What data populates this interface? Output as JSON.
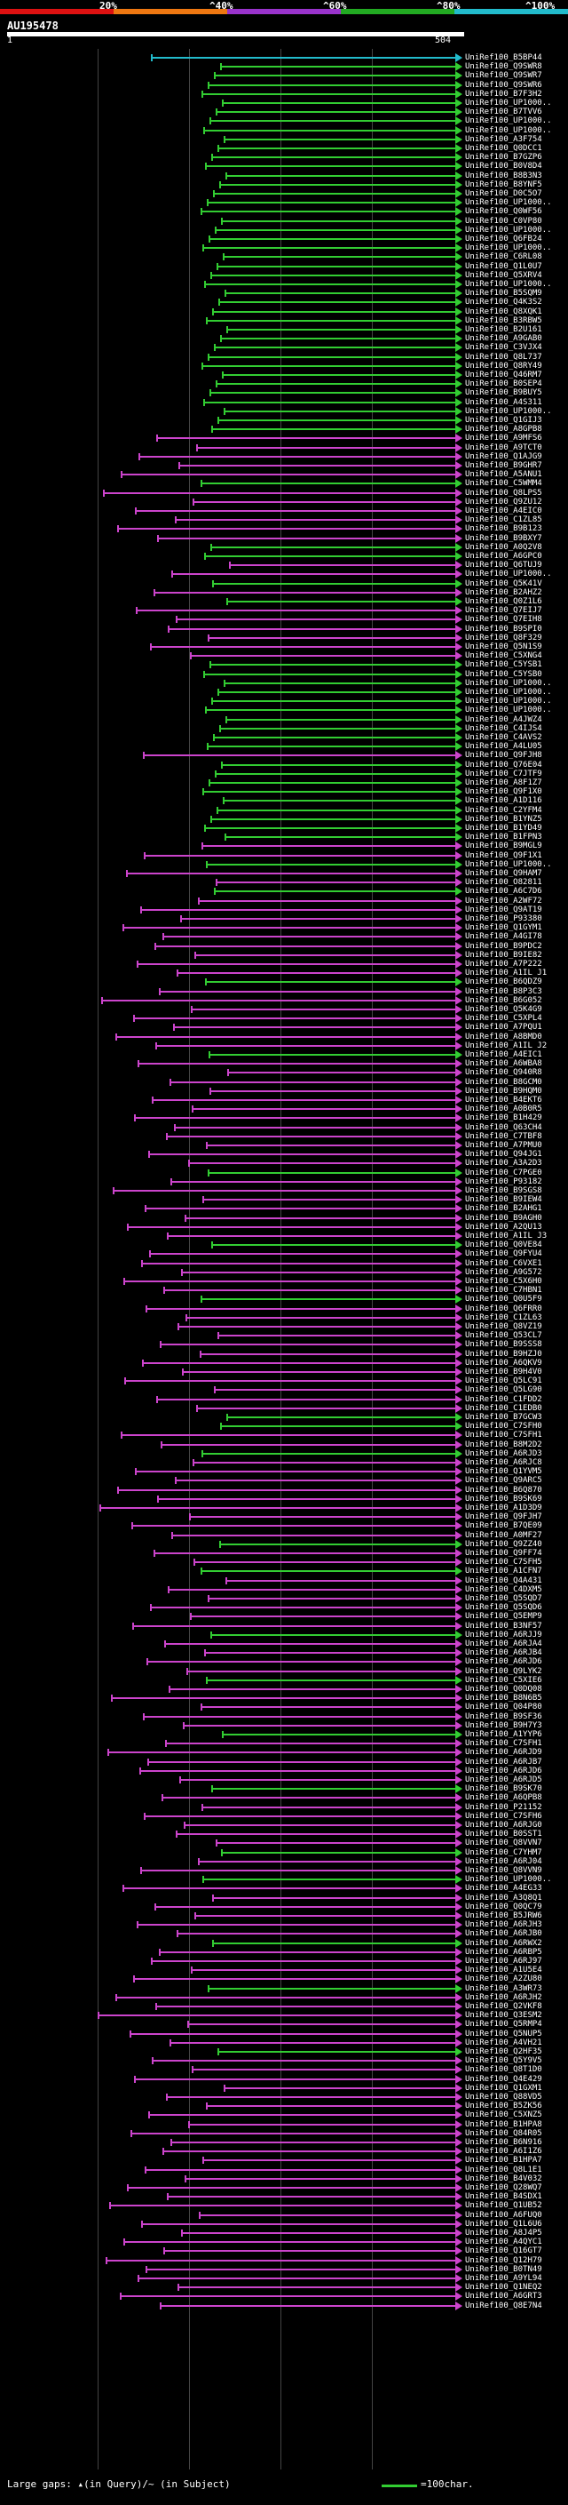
{
  "scale": {
    "labels": [
      "20%",
      "^40%",
      "^60%",
      "^80%",
      "^100%"
    ],
    "colors": [
      "#dd1111",
      "#ee7711",
      "#9933cc",
      "#22aa22",
      "#22bbcc"
    ]
  },
  "query": {
    "name": "AU195478",
    "start": "1",
    "end": "504"
  },
  "colors": {
    "green": "#32cd32",
    "magenta": "#cc44cc",
    "cyan": "#22bbcc",
    "grid": "#444444"
  },
  "hits": [
    {
      "label": "UniRef100_B5BP44",
      "color": "cyan"
    },
    {
      "label": "UniRef100_Q9SWR8",
      "color": "green"
    },
    {
      "label": "UniRef100_Q9SWR7",
      "color": "green"
    },
    {
      "label": "UniRef100_Q9SWR6",
      "color": "green"
    },
    {
      "label": "UniRef100_B7F3H2",
      "color": "green"
    },
    {
      "label": "UniRef100_UP1000..",
      "color": "green"
    },
    {
      "label": "UniRef100_B7TVV6",
      "color": "green"
    },
    {
      "label": "UniRef100_UP1000..",
      "color": "green"
    },
    {
      "label": "UniRef100_UP1000..",
      "color": "green"
    },
    {
      "label": "UniRef100_A3F754",
      "color": "green"
    },
    {
      "label": "UniRef100_Q0DCC1",
      "color": "green"
    },
    {
      "label": "UniRef100_B7GZP6",
      "color": "green"
    },
    {
      "label": "UniRef100_B0V8D4",
      "color": "green"
    },
    {
      "label": "UniRef100_B8B3N3",
      "color": "green"
    },
    {
      "label": "UniRef100_B8YNF5",
      "color": "green"
    },
    {
      "label": "UniRef100_D0C5O7",
      "color": "green"
    },
    {
      "label": "UniRef100_UP1000..",
      "color": "green"
    },
    {
      "label": "UniRef100_Q0WF56",
      "color": "green"
    },
    {
      "label": "UniRef100_C0VP80",
      "color": "green"
    },
    {
      "label": "UniRef100_UP1000..",
      "color": "green"
    },
    {
      "label": "UniRef100_Q6FB24",
      "color": "green"
    },
    {
      "label": "UniRef100_UP1000..",
      "color": "green"
    },
    {
      "label": "UniRef100_C6RL08",
      "color": "green"
    },
    {
      "label": "UniRef100_Q1L0U7",
      "color": "green"
    },
    {
      "label": "UniRef100_Q5XRV4",
      "color": "green"
    },
    {
      "label": "UniRef100_UP1000..",
      "color": "green"
    },
    {
      "label": "UniRef100_B5SQM9",
      "color": "green"
    },
    {
      "label": "UniRef100_Q4K3S2",
      "color": "green"
    },
    {
      "label": "UniRef100_Q8XQK1",
      "color": "green"
    },
    {
      "label": "UniRef100_B3RBW5",
      "color": "green"
    },
    {
      "label": "UniRef100_B2U161",
      "color": "green"
    },
    {
      "label": "UniRef100_A9GAB0",
      "color": "green"
    },
    {
      "label": "UniRef100_C3VJX4",
      "color": "green"
    },
    {
      "label": "UniRef100_Q8L737",
      "color": "green"
    },
    {
      "label": "UniRef100_Q8RY49",
      "color": "green"
    },
    {
      "label": "UniRef100_Q46RM7",
      "color": "green"
    },
    {
      "label": "UniRef100_B0SEP4",
      "color": "green"
    },
    {
      "label": "UniRef100_B9BUY5",
      "color": "green"
    },
    {
      "label": "UniRef100_A4S311",
      "color": "green"
    },
    {
      "label": "UniRef100_UP1000..",
      "color": "green"
    },
    {
      "label": "UniRef100_Q1GIJ3",
      "color": "green"
    },
    {
      "label": "UniRef100_A8GPB8",
      "color": "green"
    },
    {
      "label": "UniRef100_A9MFS6",
      "color": "magenta"
    },
    {
      "label": "UniRef100_A9TCT0",
      "color": "magenta"
    },
    {
      "label": "UniRef100_Q1AJG9",
      "color": "magenta"
    },
    {
      "label": "UniRef100_B9GHR7",
      "color": "magenta"
    },
    {
      "label": "UniRef100_A5ANU1",
      "color": "magenta"
    },
    {
      "label": "UniRef100_C5WMM4",
      "color": "green"
    },
    {
      "label": "UniRef100_Q8LPS5",
      "color": "magenta"
    },
    {
      "label": "UniRef100_Q9ZU12",
      "color": "magenta"
    },
    {
      "label": "UniRef100_A4EIC0",
      "color": "magenta"
    },
    {
      "label": "UniRef100_C1ZL85",
      "color": "magenta"
    },
    {
      "label": "UniRef100_B9B123",
      "color": "magenta"
    },
    {
      "label": "UniRef100_B9BXY7",
      "color": "magenta"
    },
    {
      "label": "UniRef100_A0Q2V8",
      "color": "green"
    },
    {
      "label": "UniRef100_A6GPC0",
      "color": "green"
    },
    {
      "label": "UniRef100_Q6TUJ9",
      "color": "magenta"
    },
    {
      "label": "UniRef100_UP1000..",
      "color": "magenta"
    },
    {
      "label": "UniRef100_Q5K41V",
      "color": "green"
    },
    {
      "label": "UniRef100_B2AHZ2",
      "color": "magenta"
    },
    {
      "label": "UniRef100_Q0Z1L6",
      "color": "green"
    },
    {
      "label": "UniRef100_Q7EIJ7",
      "color": "magenta"
    },
    {
      "label": "UniRef100_Q7EIH8",
      "color": "magenta"
    },
    {
      "label": "UniRef100_B9SPI0",
      "color": "magenta"
    },
    {
      "label": "UniRef100_Q8F329",
      "color": "magenta"
    },
    {
      "label": "UniRef100_Q5N1S9",
      "color": "magenta"
    },
    {
      "label": "UniRef100_C5XNG4",
      "color": "magenta"
    },
    {
      "label": "UniRef100_C5YSB1",
      "color": "green"
    },
    {
      "label": "UniRef100_C5YSB0",
      "color": "green"
    },
    {
      "label": "UniRef100_UP1000..",
      "color": "green"
    },
    {
      "label": "UniRef100_UP1000..",
      "color": "green"
    },
    {
      "label": "UniRef100_UP1000..",
      "color": "green"
    },
    {
      "label": "UniRef100_UP1000..",
      "color": "green"
    },
    {
      "label": "UniRef100_A4JWZ4",
      "color": "green"
    },
    {
      "label": "UniRef100_C4IJS4",
      "color": "green"
    },
    {
      "label": "UniRef100_C4AVS2",
      "color": "green"
    },
    {
      "label": "UniRef100_A4LU05",
      "color": "green"
    },
    {
      "label": "UniRef100_Q9FJH8",
      "color": "magenta"
    },
    {
      "label": "UniRef100_Q76E04",
      "color": "green"
    },
    {
      "label": "UniRef100_C7JTF9",
      "color": "green"
    },
    {
      "label": "UniRef100_A8F1Z7",
      "color": "green"
    },
    {
      "label": "UniRef100_Q9F1X0",
      "color": "green"
    },
    {
      "label": "UniRef100_A1D116",
      "color": "green"
    },
    {
      "label": "UniRef100_C2YFM4",
      "color": "green"
    },
    {
      "label": "UniRef100_B1YNZ5",
      "color": "green"
    },
    {
      "label": "UniRef100_B1YD49",
      "color": "green"
    },
    {
      "label": "UniRef100_B1FPN3",
      "color": "green"
    },
    {
      "label": "UniRef100_B9MGL9",
      "color": "magenta"
    },
    {
      "label": "UniRef100_Q9F1X1",
      "color": "magenta"
    },
    {
      "label": "UniRef100_UP1000..",
      "color": "green"
    },
    {
      "label": "UniRef100_Q9HAM7",
      "color": "magenta"
    },
    {
      "label": "UniRef100_O82811",
      "color": "magenta"
    },
    {
      "label": "UniRef100_A6C7D6",
      "color": "green"
    },
    {
      "label": "UniRef100_A2WF72",
      "color": "magenta"
    },
    {
      "label": "UniRef100_Q9AT19",
      "color": "magenta"
    },
    {
      "label": "UniRef100_P93380",
      "color": "magenta"
    },
    {
      "label": "UniRef100_Q1GYM1",
      "color": "magenta"
    },
    {
      "label": "UniRef100_A4GI78",
      "color": "magenta"
    },
    {
      "label": "UniRef100_B9PDC2",
      "color": "magenta"
    },
    {
      "label": "UniRef100_B9IE82",
      "color": "magenta"
    },
    {
      "label": "UniRef100_A7P222",
      "color": "magenta"
    },
    {
      "label": "UniRef100_A1IL J1",
      "color": "magenta"
    },
    {
      "label": "UniRef100_B6QDZ9",
      "color": "green"
    },
    {
      "label": "UniRef100_B8P3C3",
      "color": "magenta"
    },
    {
      "label": "UniRef100_B6G052",
      "color": "magenta"
    },
    {
      "label": "UniRef100_Q5K4G9",
      "color": "magenta"
    },
    {
      "label": "UniRef100_C5XPL4",
      "color": "magenta"
    },
    {
      "label": "UniRef100_A7PQU1",
      "color": "magenta"
    },
    {
      "label": "UniRef100_A8BMD0",
      "color": "magenta"
    },
    {
      "label": "UniRef100_A1IL J2",
      "color": "magenta"
    },
    {
      "label": "UniRef100_A4EIC1",
      "color": "green"
    },
    {
      "label": "UniRef100_A6WBA8",
      "color": "magenta"
    },
    {
      "label": "UniRef100_Q940R8",
      "color": "magenta"
    },
    {
      "label": "UniRef100_B8GCM0",
      "color": "magenta"
    },
    {
      "label": "UniRef100_B9HQM0",
      "color": "magenta"
    },
    {
      "label": "UniRef100_B4EKT6",
      "color": "magenta"
    },
    {
      "label": "UniRef100_A0B0R5",
      "color": "magenta"
    },
    {
      "label": "UniRef100_B1H429",
      "color": "magenta"
    },
    {
      "label": "UniRef100_Q63CH4",
      "color": "magenta"
    },
    {
      "label": "UniRef100_C7TBF8",
      "color": "magenta"
    },
    {
      "label": "UniRef100_A7PMU0",
      "color": "magenta"
    },
    {
      "label": "UniRef100_Q94JG1",
      "color": "magenta"
    },
    {
      "label": "UniRef100_A3A2D3",
      "color": "magenta"
    },
    {
      "label": "UniRef100_C7PGE0",
      "color": "green"
    },
    {
      "label": "UniRef100_P93182",
      "color": "magenta"
    },
    {
      "label": "UniRef100_B9SGS8",
      "color": "magenta"
    },
    {
      "label": "UniRef100_B9IEW4",
      "color": "magenta"
    },
    {
      "label": "UniRef100_B2AHG1",
      "color": "magenta"
    },
    {
      "label": "UniRef100_B9AGH0",
      "color": "magenta"
    },
    {
      "label": "UniRef100_A2QU13",
      "color": "magenta"
    },
    {
      "label": "UniRef100_A1IL J3",
      "color": "magenta"
    },
    {
      "label": "UniRef100_Q0VE84",
      "color": "green"
    },
    {
      "label": "UniRef100_Q9FYU4",
      "color": "magenta"
    },
    {
      "label": "UniRef100_C6VXE1",
      "color": "magenta"
    },
    {
      "label": "UniRef100_A9G572",
      "color": "magenta"
    },
    {
      "label": "UniRef100_C5X6H0",
      "color": "magenta"
    },
    {
      "label": "UniRef100_C7HBN1",
      "color": "magenta"
    },
    {
      "label": "UniRef100_Q0U5F9",
      "color": "green"
    },
    {
      "label": "UniRef100_Q6FRR0",
      "color": "magenta"
    },
    {
      "label": "UniRef100_C1ZL63",
      "color": "magenta"
    },
    {
      "label": "UniRef100_Q8VZ19",
      "color": "magenta"
    },
    {
      "label": "UniRef100_Q53CL7",
      "color": "magenta"
    },
    {
      "label": "UniRef100_B9SSS8",
      "color": "magenta"
    },
    {
      "label": "UniRef100_B9HZJ0",
      "color": "magenta"
    },
    {
      "label": "UniRef100_A6QKV9",
      "color": "magenta"
    },
    {
      "label": "UniRef100_B9H4V0",
      "color": "magenta"
    },
    {
      "label": "UniRef100_Q5LC91",
      "color": "magenta"
    },
    {
      "label": "UniRef100_Q5LG90",
      "color": "magenta"
    },
    {
      "label": "UniRef100_C1FDD2",
      "color": "magenta"
    },
    {
      "label": "UniRef100_C1EDB0",
      "color": "magenta"
    },
    {
      "label": "UniRef100_B7GCW3",
      "color": "green"
    },
    {
      "label": "UniRef100_C7SFH0",
      "color": "green"
    },
    {
      "label": "UniRef100_C7SFH1",
      "color": "magenta"
    },
    {
      "label": "UniRef100_B8M2D2",
      "color": "magenta"
    },
    {
      "label": "UniRef100_A6RJD3",
      "color": "green"
    },
    {
      "label": "UniRef100_A6RJC8",
      "color": "magenta"
    },
    {
      "label": "UniRef100_Q1YVM5",
      "color": "magenta"
    },
    {
      "label": "UniRef100_Q9ARC5",
      "color": "magenta"
    },
    {
      "label": "UniRef100_B6Q870",
      "color": "magenta"
    },
    {
      "label": "UniRef100_B9SK69",
      "color": "magenta"
    },
    {
      "label": "UniRef100_A1D3D9",
      "color": "magenta"
    },
    {
      "label": "UniRef100_Q9FJH7",
      "color": "magenta"
    },
    {
      "label": "UniRef100_B7QE09",
      "color": "magenta"
    },
    {
      "label": "UniRef100_A0MF27",
      "color": "magenta"
    },
    {
      "label": "UniRef100_Q9ZZ40",
      "color": "green"
    },
    {
      "label": "UniRef100_Q9FF74",
      "color": "magenta"
    },
    {
      "label": "UniRef100_C7SFH5",
      "color": "magenta"
    },
    {
      "label": "UniRef100_A1CFN7",
      "color": "green"
    },
    {
      "label": "UniRef100_Q4A431",
      "color": "magenta"
    },
    {
      "label": "UniRef100_C4DXM5",
      "color": "magenta"
    },
    {
      "label": "UniRef100_Q5SQD7",
      "color": "magenta"
    },
    {
      "label": "UniRef100_Q5SQD6",
      "color": "magenta"
    },
    {
      "label": "UniRef100_Q5EMP9",
      "color": "magenta"
    },
    {
      "label": "UniRef100_B3NF57",
      "color": "magenta"
    },
    {
      "label": "UniRef100_A6RJJ9",
      "color": "green"
    },
    {
      "label": "UniRef100_A6RJA4",
      "color": "magenta"
    },
    {
      "label": "UniRef100_A6RJB4",
      "color": "magenta"
    },
    {
      "label": "UniRef100_A6RJD6",
      "color": "magenta"
    },
    {
      "label": "UniRef100_Q9LYK2",
      "color": "magenta"
    },
    {
      "label": "UniRef100_C5XIE6",
      "color": "green"
    },
    {
      "label": "UniRef100_Q0DQ08",
      "color": "magenta"
    },
    {
      "label": "UniRef100_B8N6B5",
      "color": "magenta"
    },
    {
      "label": "UniRef100_Q04P80",
      "color": "magenta"
    },
    {
      "label": "UniRef100_B9SF36",
      "color": "magenta"
    },
    {
      "label": "UniRef100_B9H7Y3",
      "color": "magenta"
    },
    {
      "label": "UniRef100_A1YYP6",
      "color": "green"
    },
    {
      "label": "UniRef100_C7SFH1",
      "color": "magenta"
    },
    {
      "label": "UniRef100_A6RJD9",
      "color": "magenta"
    },
    {
      "label": "UniRef100_A6RJB7",
      "color": "magenta"
    },
    {
      "label": "UniRef100_A6RJD6",
      "color": "magenta"
    },
    {
      "label": "UniRef100_A6RJD5",
      "color": "magenta"
    },
    {
      "label": "UniRef100_B9SK70",
      "color": "green"
    },
    {
      "label": "UniRef100_A6QPB8",
      "color": "magenta"
    },
    {
      "label": "UniRef100_P21152",
      "color": "magenta"
    },
    {
      "label": "UniRef100_C7SFH6",
      "color": "magenta"
    },
    {
      "label": "UniRef100_A6RJG0",
      "color": "magenta"
    },
    {
      "label": "UniRef100_B0SST1",
      "color": "magenta"
    },
    {
      "label": "UniRef100_Q8VVN7",
      "color": "magenta"
    },
    {
      "label": "UniRef100_C7YHM7",
      "color": "green"
    },
    {
      "label": "UniRef100_A6RJ04",
      "color": "magenta"
    },
    {
      "label": "UniRef100_Q8VVN9",
      "color": "magenta"
    },
    {
      "label": "UniRef100_UP1000..",
      "color": "green"
    },
    {
      "label": "UniRef100_A4EG33",
      "color": "magenta"
    },
    {
      "label": "UniRef100_A3Q8Q1",
      "color": "magenta"
    },
    {
      "label": "UniRef100_Q0QC79",
      "color": "magenta"
    },
    {
      "label": "UniRef100_B5JRW6",
      "color": "magenta"
    },
    {
      "label": "UniRef100_A6RJH3",
      "color": "magenta"
    },
    {
      "label": "UniRef100_A6RJB0",
      "color": "magenta"
    },
    {
      "label": "UniRef100_A6RWX2",
      "color": "green"
    },
    {
      "label": "UniRef100_A6RBP5",
      "color": "magenta"
    },
    {
      "label": "UniRef100_A6RJ97",
      "color": "magenta"
    },
    {
      "label": "UniRef100_A1U5E4",
      "color": "magenta"
    },
    {
      "label": "UniRef100_A2ZU80",
      "color": "magenta"
    },
    {
      "label": "UniRef100_A3WR73",
      "color": "green"
    },
    {
      "label": "UniRef100_A6RJH2",
      "color": "magenta"
    },
    {
      "label": "UniRef100_Q2VKF8",
      "color": "magenta"
    },
    {
      "label": "UniRef100_Q3ESM2",
      "color": "magenta"
    },
    {
      "label": "UniRef100_Q5RMP4",
      "color": "magenta"
    },
    {
      "label": "UniRef100_Q5NUP5",
      "color": "magenta"
    },
    {
      "label": "UniRef100_A4VH21",
      "color": "magenta"
    },
    {
      "label": "UniRef100_Q2HF35",
      "color": "green"
    },
    {
      "label": "UniRef100_Q5Y9V5",
      "color": "magenta"
    },
    {
      "label": "UniRef100_Q8T1D0",
      "color": "magenta"
    },
    {
      "label": "UniRef100_Q4E429",
      "color": "magenta"
    },
    {
      "label": "UniRef100_Q1GXM1",
      "color": "magenta"
    },
    {
      "label": "UniRef100_Q88VD5",
      "color": "magenta"
    },
    {
      "label": "UniRef100_B5ZK56",
      "color": "magenta"
    },
    {
      "label": "UniRef100_C5XNZ5",
      "color": "magenta"
    },
    {
      "label": "UniRef100_B1HPA8",
      "color": "magenta"
    },
    {
      "label": "UniRef100_Q84R05",
      "color": "magenta"
    },
    {
      "label": "UniRef100_B6N916",
      "color": "magenta"
    },
    {
      "label": "UniRef100_A6I1Z6",
      "color": "magenta"
    },
    {
      "label": "UniRef100_B1HPA7",
      "color": "magenta"
    },
    {
      "label": "UniRef100_Q8L1E1",
      "color": "magenta"
    },
    {
      "label": "UniRef100_B4V032",
      "color": "magenta"
    },
    {
      "label": "UniRef100_Q28WQ7",
      "color": "magenta"
    },
    {
      "label": "UniRef100_B4SDX1",
      "color": "magenta"
    },
    {
      "label": "UniRef100_Q1UB52",
      "color": "magenta"
    },
    {
      "label": "UniRef100_A6FUQ0",
      "color": "magenta"
    },
    {
      "label": "UniRef100_Q1L6U6",
      "color": "magenta"
    },
    {
      "label": "UniRef100_A8J4P5",
      "color": "magenta"
    },
    {
      "label": "UniRef100_A4QYC1",
      "color": "magenta"
    },
    {
      "label": "UniRef100_Q16GT7",
      "color": "magenta"
    },
    {
      "label": "UniRef100_Q12H79",
      "color": "magenta"
    },
    {
      "label": "UniRef100_B0TN49",
      "color": "magenta"
    },
    {
      "label": "UniRef100_A9YL94",
      "color": "magenta"
    },
    {
      "label": "UniRef100_Q1NEQ2",
      "color": "magenta"
    },
    {
      "label": "UniRef100_A6GRT3",
      "color": "magenta"
    },
    {
      "label": "UniRef100_Q8E7N4",
      "color": "magenta"
    }
  ],
  "legend": {
    "text": "Large gaps: ▴(in Query)/~ (in Subject)",
    "scale_text": "=100char."
  }
}
